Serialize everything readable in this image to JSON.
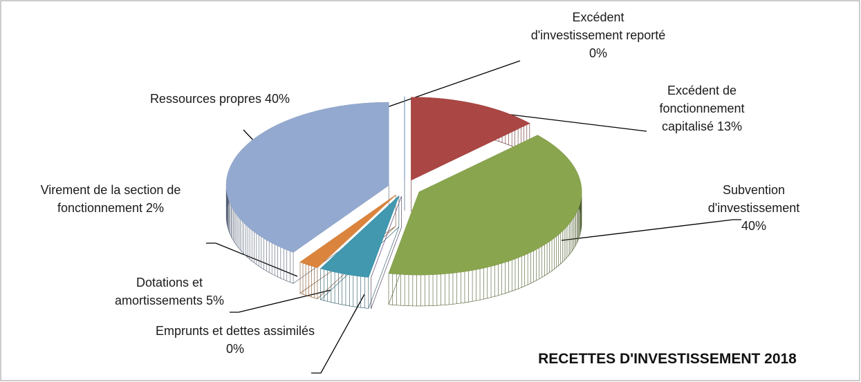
{
  "chart_data": {
    "type": "pie3d",
    "title": "RECETTES D'INVESTISSEMENT 2018",
    "categories": [
      "Excédent d'investissement reporté",
      "Excédent de fonctionnement capitalisé",
      "Subvention d'investissement",
      "Emprunts et dettes assimilés",
      "Dotations et amortissements",
      "Virement de la section de fonctionnement",
      "Ressources propres"
    ],
    "values": [
      0,
      13,
      40,
      0,
      5,
      2,
      40
    ],
    "value_labels": [
      "0%",
      "13%",
      "40%",
      "0%",
      "5%",
      "2%",
      "40%"
    ],
    "colors": [
      "#4f81bd",
      "#aa4643",
      "#89a54e",
      "#71588f",
      "#4198af",
      "#db843d",
      "#93a9cf"
    ]
  }
}
